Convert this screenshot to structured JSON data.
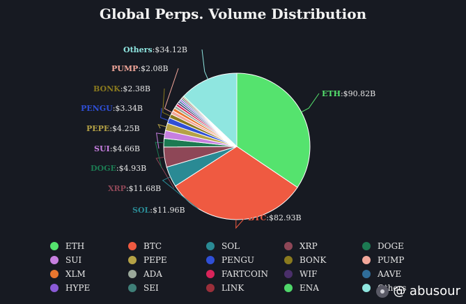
{
  "chart_data": {
    "type": "pie",
    "title": "Global Perps. Volume Distribution",
    "slices": [
      {
        "name": "ETH",
        "value": 90.82,
        "label": "ETH",
        "value_label": ":$90.82B",
        "color": "#55e36e"
      },
      {
        "name": "BTC",
        "value": 82.93,
        "label": "BTC",
        "value_label": ":$82.93B",
        "color": "#ef5a41"
      },
      {
        "name": "SOL",
        "value": 11.96,
        "label": "SOL",
        "value_label": ":$11.96B",
        "color": "#2a8a94"
      },
      {
        "name": "XRP",
        "value": 11.68,
        "label": "XRP",
        "value_label": ":$11.68B",
        "color": "#8e4757"
      },
      {
        "name": "DOGE",
        "value": 4.93,
        "label": "DOGE",
        "value_label": ":$4.93B",
        "color": "#1c7a52"
      },
      {
        "name": "SUI",
        "value": 4.66,
        "label": "SUI",
        "value_label": ":$4.66B",
        "color": "#c77fe0"
      },
      {
        "name": "PEPE",
        "value": 4.25,
        "label": "PEPE",
        "value_label": ":$4.25B",
        "color": "#b5a246"
      },
      {
        "name": "PENGU",
        "value": 3.34,
        "label": "PENGU",
        "value_label": ":$3.34B",
        "color": "#2f4fd6"
      },
      {
        "name": "BONK",
        "value": 2.38,
        "label": "BONK",
        "value_label": ":$2.38B",
        "color": "#8a7a1e"
      },
      {
        "name": "PUMP",
        "value": 2.08,
        "label": "PUMP",
        "value_label": ":$2.08B",
        "color": "#f2a79a"
      },
      {
        "name": "XLM",
        "value": 1.8,
        "color": "#e8762f"
      },
      {
        "name": "ADA",
        "value": 1.6,
        "color": "#9aa89a"
      },
      {
        "name": "FARTCOIN",
        "value": 1.4,
        "color": "#d8245a"
      },
      {
        "name": "WIF",
        "value": 1.2,
        "color": "#4a2f6a"
      },
      {
        "name": "AAVE",
        "value": 1.1,
        "color": "#2f6d9a"
      },
      {
        "name": "HYPE",
        "value": 1.0,
        "color": "#8a5ad6"
      },
      {
        "name": "SEI",
        "value": 0.9,
        "color": "#3f7f78"
      },
      {
        "name": "LINK",
        "value": 0.8,
        "color": "#9a2f3a"
      },
      {
        "name": "ENA",
        "value": 0.7,
        "color": "#4fd66a"
      },
      {
        "name": "Others",
        "value": 34.12,
        "label": "Others",
        "value_label": ":$34.12B",
        "color": "#8fe6e0"
      }
    ],
    "legend": {
      "placement": "bottom",
      "items": [
        "ETH",
        "BTC",
        "SOL",
        "XRP",
        "DOGE",
        "SUI",
        "PEPE",
        "PENGU",
        "BONK",
        "PUMP",
        "XLM",
        "ADA",
        "FARTCOIN",
        "WIF",
        "AAVE",
        "HYPE",
        "SEI",
        "LINK",
        "ENA",
        "Others"
      ]
    }
  },
  "watermark": {
    "text": "@ abusour"
  }
}
